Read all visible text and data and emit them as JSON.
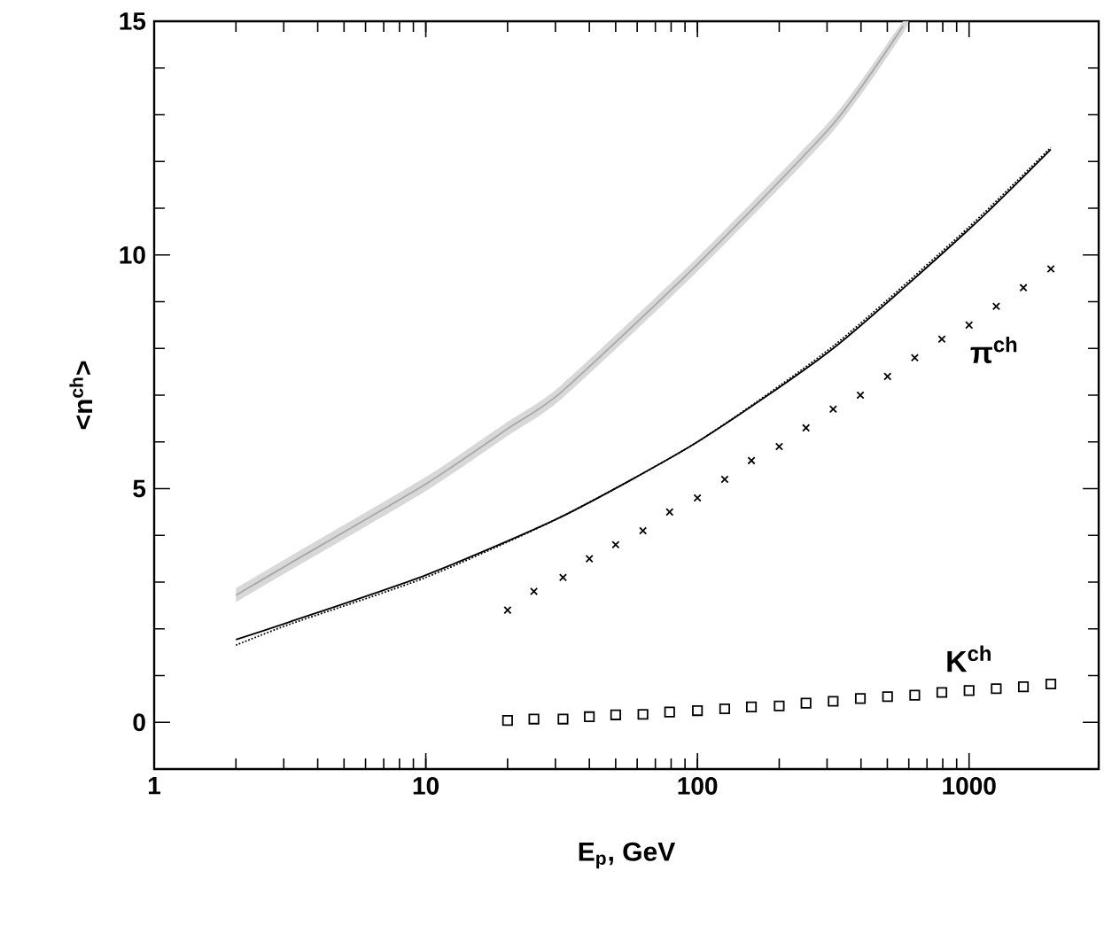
{
  "chart_data": {
    "type": "line",
    "xlabel": "E$_{p}$, GeV",
    "ylabel": "<n$^{ch}$>",
    "log": "x",
    "xlim": [
      1,
      3000
    ],
    "ylim": [
      -1,
      15
    ],
    "xticks": [
      1,
      10,
      100,
      1000
    ],
    "yticks": [
      0,
      5,
      10,
      15
    ],
    "series": [
      {
        "color": "#a8a8a8",
        "x": [
          2,
          3.16,
          10,
          20,
          31.6,
          100,
          316,
          572
        ],
        "values": [
          2.72,
          3.4,
          5.1,
          6.28,
          7.07,
          9.8,
          12.8,
          14.9
        ],
        "lower": [
          2.57,
          3.25,
          4.95,
          6.13,
          6.92,
          9.65,
          12.65,
          14.75
        ],
        "upper": [
          2.87,
          3.55,
          5.25,
          6.43,
          7.22,
          9.95,
          12.95,
          15.0
        ]
      },
      {
        "color": "#000000",
        "line_style": "solid",
        "x": [
          2,
          3.16,
          10,
          31.6,
          100,
          316,
          1000,
          2000
        ],
        "values": [
          1.77,
          2.15,
          3.15,
          4.4,
          6.0,
          8.0,
          10.55,
          12.26
        ]
      },
      {
        "color": "#000000",
        "line_style": "dotted",
        "x": [
          2,
          3.16,
          10,
          31.6,
          100,
          316,
          1000,
          2000
        ],
        "values": [
          1.65,
          2.1,
          3.1,
          4.4,
          6.0,
          8.05,
          10.6,
          12.3
        ]
      },
      {
        "type": "scatter",
        "name": "π$^{ch}$",
        "color": "#000000",
        "marker": "cross",
        "x": [
          20,
          25,
          32,
          40,
          50,
          63,
          79,
          100,
          126,
          158,
          200,
          251,
          316,
          398,
          501,
          631,
          794,
          1000,
          1259,
          1585,
          2000
        ],
        "values": [
          2.4,
          2.8,
          3.1,
          3.5,
          3.8,
          4.1,
          4.5,
          4.8,
          5.2,
          5.6,
          5.9,
          6.3,
          6.7,
          7.0,
          7.4,
          7.8,
          8.2,
          8.5,
          8.9,
          9.3,
          9.7
        ]
      },
      {
        "type": "scatter",
        "name": "K$^{ch}$",
        "color": "#000000",
        "marker": "square",
        "x": [
          20,
          25,
          32,
          40,
          50,
          63,
          79,
          100,
          126,
          158,
          200,
          251,
          316,
          398,
          501,
          631,
          794,
          1000,
          1259,
          1585,
          2000
        ],
        "values": [
          0.04,
          0.07,
          0.07,
          0.12,
          0.16,
          0.17,
          0.22,
          0.25,
          0.29,
          0.33,
          0.35,
          0.41,
          0.45,
          0.51,
          0.55,
          0.58,
          0.64,
          0.68,
          0.72,
          0.76,
          0.82
        ]
      }
    ]
  }
}
